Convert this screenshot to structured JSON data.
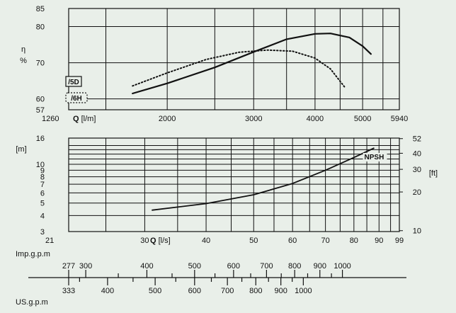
{
  "chart_data": [
    {
      "type": "line",
      "title": "",
      "xlabel": "Q [l/m]",
      "ylabel": "η %",
      "x_scale": "log",
      "xlim": [
        1260,
        5940
      ],
      "ylim": [
        57,
        85
      ],
      "x_ticks": [
        1260,
        2000,
        3000,
        4000,
        5000,
        5940
      ],
      "x_grid": [
        1500,
        2000,
        2500,
        3000,
        3500,
        4000,
        4500,
        5000,
        5500
      ],
      "y_ticks": [
        57,
        60,
        70,
        80,
        85
      ],
      "y_grid": [
        60,
        70,
        80
      ],
      "grid": true,
      "legend": [
        {
          "label": "/5D",
          "style": "solid-box"
        },
        {
          "label": "/6H",
          "style": "dotted-box"
        }
      ],
      "series": [
        {
          "name": "/5D",
          "style": "solid",
          "x": [
            1700,
            2000,
            2500,
            3000,
            3500,
            4000,
            4300,
            4700,
            5000,
            5200
          ],
          "y": [
            61.5,
            64.3,
            68.7,
            73.0,
            76.5,
            78.0,
            78.1,
            77.0,
            74.6,
            72.4
          ]
        },
        {
          "name": "/6H",
          "style": "dotted",
          "x": [
            1700,
            2000,
            2400,
            2800,
            3200,
            3600,
            4000,
            4300,
            4600
          ],
          "y": [
            63.6,
            67.2,
            70.9,
            72.9,
            73.5,
            73.2,
            71.3,
            68.3,
            63.2
          ]
        }
      ]
    },
    {
      "type": "line",
      "title": "",
      "xlabel": "Q [l/s]",
      "ylabel": "[m]",
      "y2label": "[ft]",
      "x_scale": "log",
      "y_scale": "log",
      "xlim": [
        21,
        99
      ],
      "ylim": [
        3,
        16
      ],
      "x_ticks": [
        21,
        30,
        40,
        50,
        60,
        70,
        80,
        90,
        99
      ],
      "x_grid": [
        25,
        30,
        35,
        40,
        45,
        50,
        55,
        60,
        65,
        70,
        75,
        80,
        85,
        90,
        95
      ],
      "y_ticks": [
        3,
        4,
        5,
        6,
        7,
        8,
        9,
        10,
        16
      ],
      "y_grid": [
        4,
        5,
        6,
        7,
        8,
        9,
        10,
        11,
        12,
        13,
        14
      ],
      "y2_ticks": [
        10,
        20,
        30,
        40,
        52
      ],
      "grid": true,
      "series": [
        {
          "name": "NPSH",
          "x": [
            31,
            40,
            50,
            60,
            70,
            80,
            88
          ],
          "y": [
            4.4,
            4.95,
            5.8,
            7.1,
            9.0,
            11.3,
            13.4
          ]
        }
      ]
    }
  ],
  "scales": {
    "imp_label": "Imp.g.p.m",
    "us_label": "US.g.p.m",
    "imp_ticks": [
      {
        "v": "277",
        "q": 21,
        "label": true
      },
      {
        "v": "300",
        "q": 22.75,
        "label": true
      },
      {
        "v": "350",
        "q": 26.5,
        "label": false
      },
      {
        "v": "400",
        "q": 30.3,
        "label": true
      },
      {
        "v": "450",
        "q": 34.1,
        "label": false
      },
      {
        "v": "500",
        "q": 37.9,
        "label": true
      },
      {
        "v": "550",
        "q": 41.7,
        "label": false
      },
      {
        "v": "600",
        "q": 45.5,
        "label": true
      },
      {
        "v": "650",
        "q": 49.3,
        "label": false
      },
      {
        "v": "700",
        "q": 53.1,
        "label": true
      },
      {
        "v": "750",
        "q": 56.9,
        "label": false
      },
      {
        "v": "800",
        "q": 60.6,
        "label": true
      },
      {
        "v": "850",
        "q": 64.4,
        "label": false
      },
      {
        "v": "900",
        "q": 68.2,
        "label": true
      },
      {
        "v": "950",
        "q": 72.0,
        "label": false
      },
      {
        "v": "1000",
        "q": 75.8,
        "label": true
      }
    ],
    "us_ticks": [
      {
        "v": "333",
        "q": 21,
        "label": true
      },
      {
        "v": "350",
        "q": 22.1,
        "label": false
      },
      {
        "v": "400",
        "q": 25.2,
        "label": true
      },
      {
        "v": "450",
        "q": 28.4,
        "label": false
      },
      {
        "v": "500",
        "q": 31.5,
        "label": true
      },
      {
        "v": "550",
        "q": 34.7,
        "label": false
      },
      {
        "v": "600",
        "q": 37.9,
        "label": true
      },
      {
        "v": "650",
        "q": 41.0,
        "label": false
      },
      {
        "v": "700",
        "q": 44.2,
        "label": true
      },
      {
        "v": "750",
        "q": 47.3,
        "label": false
      },
      {
        "v": "800",
        "q": 50.5,
        "label": true
      },
      {
        "v": "850",
        "q": 53.6,
        "label": false
      },
      {
        "v": "900",
        "q": 56.8,
        "label": true
      },
      {
        "v": "950",
        "q": 59.9,
        "label": false
      },
      {
        "v": "1000",
        "q": 63.1,
        "label": true
      }
    ]
  }
}
